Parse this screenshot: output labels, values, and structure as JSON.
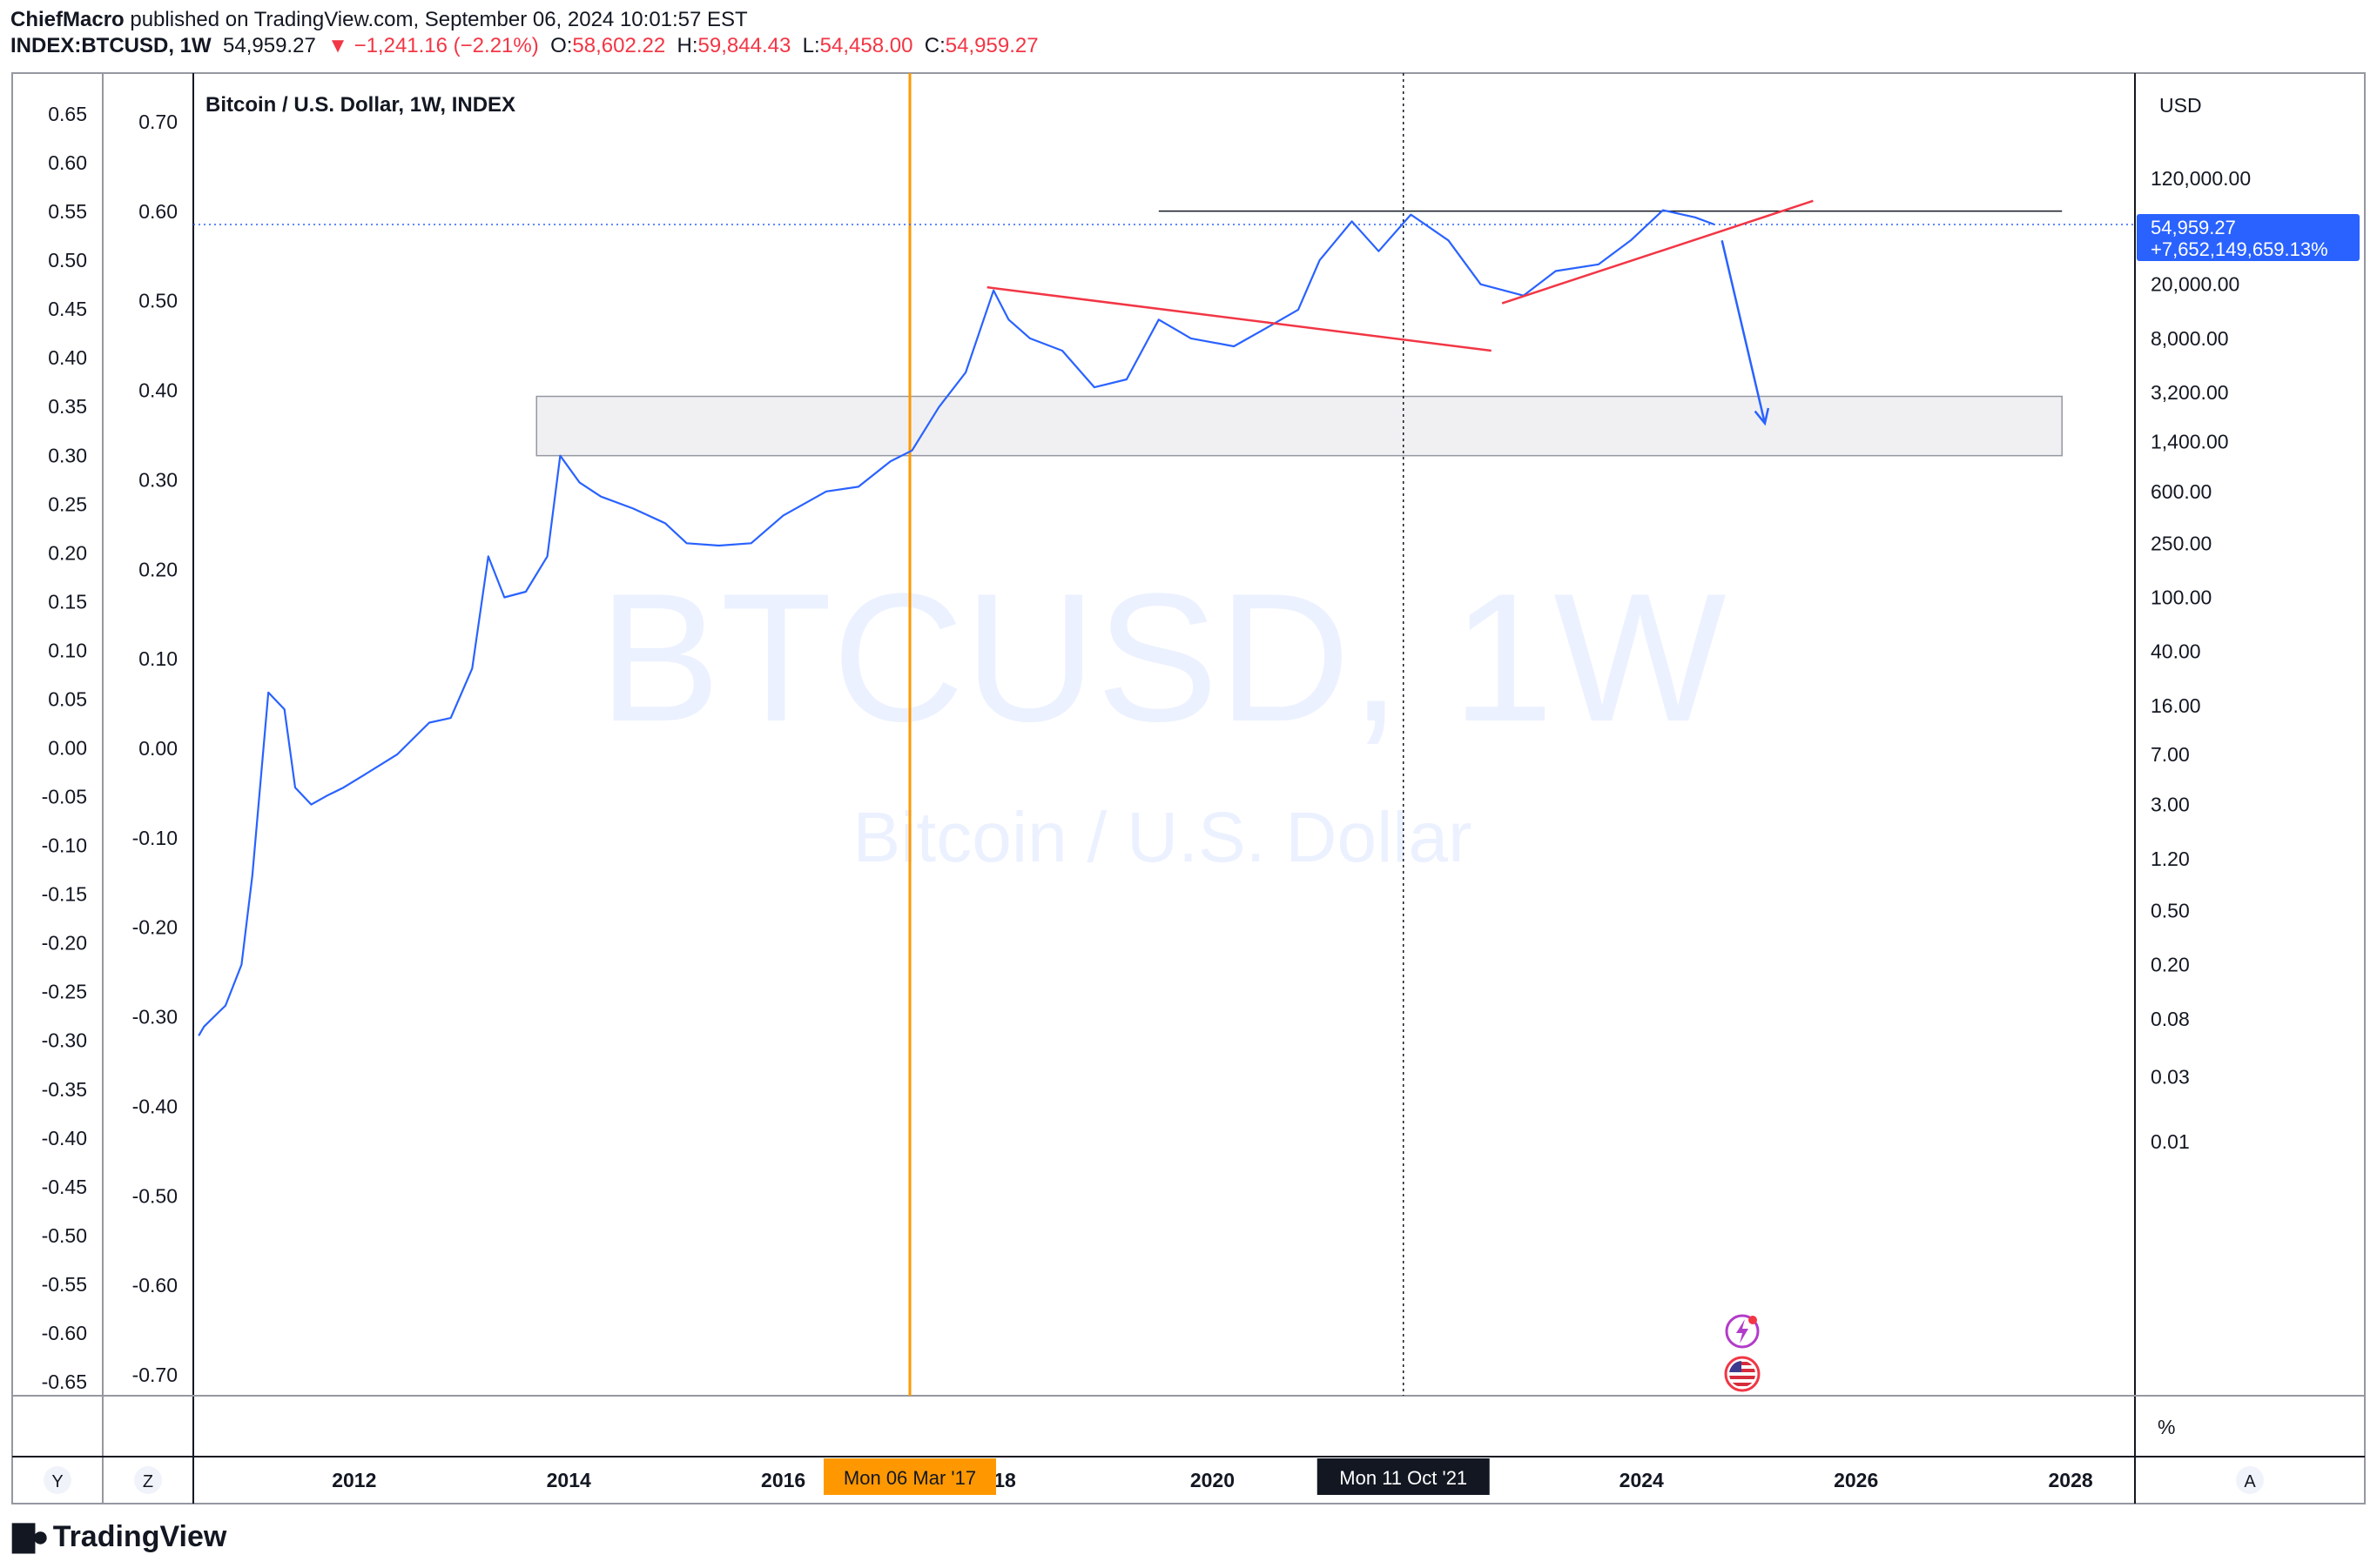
{
  "header": {
    "author": "ChiefMacro",
    "published_text": " published on TradingView.com, September 06, 2024 10:01:57 EST",
    "symbol": "INDEX:BTCUSD, 1W",
    "last": "54,959.27",
    "change": "▼ −1,241.16 (−2.21%)",
    "open_label": "O:",
    "open": "58,602.22",
    "high_label": "H:",
    "high": "59,844.43",
    "low_label": "L:",
    "low": "54,458.00",
    "close_label": "C:",
    "close": "54,959.27"
  },
  "chart_title": "Bitcoin / U.S. Dollar, 1W, INDEX",
  "watermark": {
    "symbol": "BTCUSD, 1W",
    "name": "Bitcoin / U.S. Dollar"
  },
  "axis_currency": "USD",
  "axis_percent": "%",
  "price_tag": {
    "price": "54,959.27",
    "change": "+7,652,149,659.13%"
  },
  "time_labels": {
    "vline1": "Mon 06 Mar '17",
    "vline2": "Mon 11 Oct '21"
  },
  "toolbar": {
    "y": "Y",
    "z": "Z",
    "a": "A"
  },
  "footer_logo": "TradingView",
  "icons": [
    "lightning-event-icon",
    "us-flag-icon",
    "tradingview-logo-icon"
  ],
  "colors": {
    "price_line": "#2962ff",
    "trendline": "#f23645",
    "vline_orange": "#ff9800",
    "price_tag_bg": "#2962ff",
    "negative": "#f23645",
    "zone_fill": "#f0f0f0"
  },
  "chart_data": {
    "type": "line",
    "title": "Bitcoin / U.S. Dollar, 1W, INDEX",
    "series": [
      {
        "name": "BTCUSD",
        "x": [
          2010.55,
          2010.6,
          2010.8,
          2010.95,
          2011.05,
          2011.2,
          2011.35,
          2011.45,
          2011.6,
          2011.75,
          2011.9,
          2012.1,
          2012.4,
          2012.7,
          2012.9,
          2013.1,
          2013.25,
          2013.4,
          2013.6,
          2013.8,
          2013.92,
          2014.1,
          2014.3,
          2014.6,
          2014.9,
          2015.1,
          2015.4,
          2015.7,
          2016.0,
          2016.4,
          2016.7,
          2017.0,
          2017.2,
          2017.45,
          2017.7,
          2017.96,
          2018.1,
          2018.3,
          2018.6,
          2018.9,
          2019.2,
          2019.5,
          2019.8,
          2020.2,
          2020.5,
          2020.8,
          2021.0,
          2021.3,
          2021.55,
          2021.85,
          2022.2,
          2022.5,
          2022.9,
          2023.2,
          2023.6,
          2023.9,
          2024.2,
          2024.5,
          2024.68
        ],
        "y": [
          0.06,
          0.07,
          0.1,
          0.2,
          0.9,
          20,
          15,
          4,
          3,
          3.5,
          4,
          5,
          7,
          12,
          13,
          30,
          200,
          100,
          110,
          200,
          1100,
          700,
          550,
          450,
          350,
          250,
          240,
          250,
          400,
          600,
          650,
          1000,
          1200,
          2500,
          4500,
          18000,
          11000,
          8000,
          6500,
          3500,
          4000,
          11000,
          8000,
          7000,
          9500,
          13000,
          30000,
          58000,
          35000,
          65000,
          42000,
          20000,
          16500,
          25000,
          28000,
          42000,
          70000,
          62000,
          54959.27
        ]
      }
    ],
    "y_scale": "log",
    "y_ticks": [
      "120,000.00",
      "54,959.27",
      "20,000.00",
      "8,000.00",
      "3,200.00",
      "1,400.00",
      "600.00",
      "250.00",
      "100.00",
      "40.00",
      "16.00",
      "7.00",
      "3.00",
      "1.20",
      "0.50",
      "0.20",
      "0.08",
      "0.03",
      "0.01"
    ],
    "x_ticks": [
      "2012",
      "2014",
      "2016",
      "18",
      "2020",
      "2024",
      "2026",
      "2028"
    ],
    "left_axis_1": [
      "0.65",
      "0.60",
      "0.55",
      "0.50",
      "0.45",
      "0.40",
      "0.35",
      "0.30",
      "0.25",
      "0.20",
      "0.15",
      "0.10",
      "0.05",
      "0.00",
      "-0.05",
      "-0.10",
      "-0.15",
      "-0.20",
      "-0.25",
      "-0.30",
      "-0.35",
      "-0.40",
      "-0.45",
      "-0.50",
      "-0.55",
      "-0.60",
      "-0.65"
    ],
    "left_axis_2": [
      "0.70",
      "0.60",
      "0.50",
      "0.40",
      "0.30",
      "0.20",
      "0.10",
      "0.00",
      "-0.10",
      "-0.20",
      "-0.30",
      "-0.40",
      "-0.50",
      "-0.60",
      "-0.70"
    ],
    "annotations": {
      "vline_orange_x": 2017.18,
      "vline_dotted_x": 2021.78,
      "zone_range": [
        1100,
        3000
      ],
      "zone_x": [
        2013.7,
        2027.92
      ],
      "resistance_y": 69000,
      "resistance_x": [
        2019.5,
        2027.92
      ],
      "current_price": 54959.27,
      "trend_down": {
        "x": [
          2017.9,
          2022.6
        ],
        "y": [
          19000,
          6500
        ]
      },
      "trend_up": {
        "x": [
          2022.7,
          2025.6
        ],
        "y": [
          14500,
          82000
        ]
      },
      "arrow": {
        "x": [
          2024.75,
          2025.15
        ],
        "y": [
          42000,
          1900
        ]
      }
    },
    "grid": false
  }
}
